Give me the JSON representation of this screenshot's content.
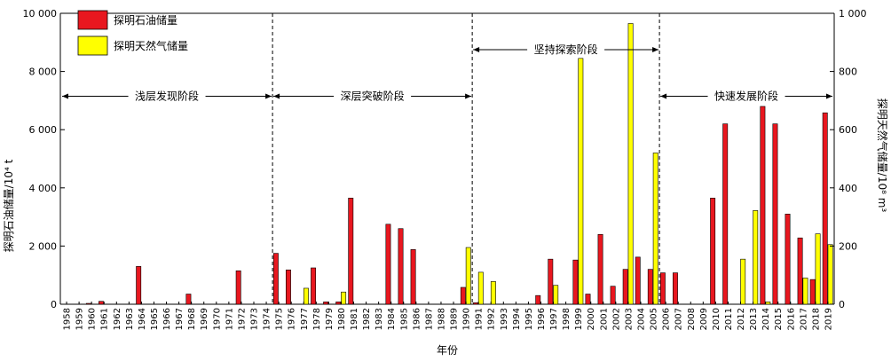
{
  "chart_data": {
    "type": "bar",
    "categories": [
      "1958",
      "1959",
      "1960",
      "1961",
      "1962",
      "1963",
      "1964",
      "1965",
      "1966",
      "1967",
      "1968",
      "1969",
      "1970",
      "1971",
      "1972",
      "1973",
      "1974",
      "1975",
      "1976",
      "1977",
      "1978",
      "1979",
      "1980",
      "1981",
      "1982",
      "1983",
      "1984",
      "1985",
      "1986",
      "1987",
      "1988",
      "1989",
      "1990",
      "1991",
      "1992",
      "1993",
      "1994",
      "1995",
      "1996",
      "1997",
      "1998",
      "1999",
      "2000",
      "2001",
      "2002",
      "2003",
      "2004",
      "2005",
      "2006",
      "2007",
      "2008",
      "2009",
      "2010",
      "2011",
      "2012",
      "2013",
      "2014",
      "2015",
      "2016",
      "2017",
      "2018",
      "2019"
    ],
    "series": [
      {
        "name": "探明石油储量",
        "color": "#e8171f",
        "axis": "left",
        "values": [
          0,
          0,
          30,
          100,
          0,
          0,
          1300,
          0,
          0,
          0,
          350,
          0,
          0,
          0,
          1150,
          0,
          0,
          1750,
          1180,
          0,
          1250,
          80,
          80,
          3650,
          0,
          0,
          2750,
          2600,
          1880,
          0,
          0,
          0,
          580,
          50,
          0,
          0,
          0,
          0,
          300,
          1550,
          0,
          1520,
          350,
          2400,
          620,
          1200,
          1620,
          1200,
          1080,
          1080,
          0,
          0,
          3650,
          6200,
          0,
          0,
          6800,
          6200,
          3100,
          2280,
          850,
          6580
        ]
      },
      {
        "name": "探明天然气储量",
        "color": "#ffff00",
        "axis": "right",
        "values": [
          0,
          0,
          0,
          0,
          0,
          0,
          0,
          0,
          0,
          0,
          0,
          0,
          0,
          0,
          0,
          0,
          0,
          0,
          0,
          55,
          0,
          0,
          42,
          0,
          0,
          0,
          0,
          0,
          0,
          0,
          0,
          0,
          195,
          110,
          78,
          0,
          0,
          0,
          0,
          65,
          0,
          845,
          0,
          0,
          0,
          965,
          0,
          520,
          0,
          0,
          0,
          0,
          0,
          0,
          155,
          322,
          8,
          0,
          0,
          90,
          242,
          205
        ]
      }
    ],
    "xlabel": "年份",
    "ylabel": "探明石油储量/10⁴ t",
    "ylabel_right": "探明天然气储量/10⁸ m³",
    "ylim": [
      0,
      10000
    ],
    "ylim_right": [
      0,
      1000
    ],
    "yticks": [
      0,
      2000,
      4000,
      6000,
      8000,
      10000
    ],
    "yticks_labels": [
      "0",
      "2 000",
      "4 000",
      "6 000",
      "8 000",
      "10 000"
    ],
    "yticks_right": [
      0,
      200,
      400,
      600,
      800,
      1000
    ],
    "yticks_right_labels": [
      "0",
      "200",
      "400",
      "600",
      "800",
      "1 000"
    ],
    "legend": {
      "placement": "top-left"
    },
    "grid": false,
    "stages": [
      {
        "label": "浅层发现阶段",
        "from": "1958",
        "to": "1974",
        "level": 7150
      },
      {
        "label": "深层突破阶段",
        "from": "1974",
        "to": "1990",
        "level": 7150
      },
      {
        "label": "坚持探索阶段",
        "from": "1990",
        "to": "2005",
        "level": 8750
      },
      {
        "label": "快速发展阶段",
        "from": "2005",
        "to": "2019",
        "level": 7150
      }
    ],
    "stage_dividers": [
      "1974",
      "1990",
      "2005"
    ]
  }
}
